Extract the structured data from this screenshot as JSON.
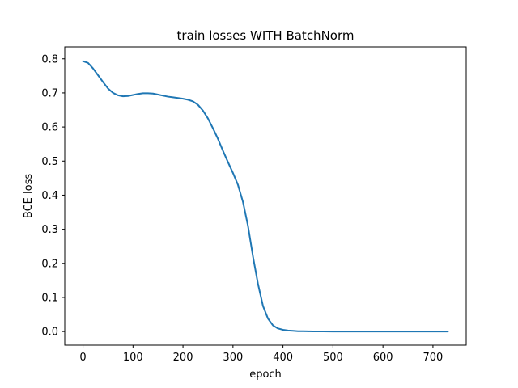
{
  "chart_data": {
    "type": "line",
    "title": "train losses WITH BatchNorm",
    "xlabel": "epoch",
    "ylabel": "BCE loss",
    "xlim": [
      -36.5,
      766.5
    ],
    "ylim": [
      -0.04,
      0.835
    ],
    "xticks": [
      0,
      100,
      200,
      300,
      400,
      500,
      600,
      700
    ],
    "yticks": [
      0.0,
      0.1,
      0.2,
      0.3,
      0.4,
      0.5,
      0.6,
      0.7,
      0.8
    ],
    "ytick_labels": [
      "0.0",
      "0.1",
      "0.2",
      "0.3",
      "0.4",
      "0.5",
      "0.6",
      "0.7",
      "0.8"
    ],
    "grid": false,
    "line_color": "#1f77b4",
    "series": [
      {
        "x": [
          0,
          10,
          20,
          30,
          40,
          50,
          60,
          70,
          80,
          90,
          100,
          110,
          120,
          130,
          140,
          150,
          160,
          170,
          180,
          190,
          200,
          210,
          220,
          230,
          240,
          250,
          260,
          270,
          280,
          290,
          300,
          310,
          320,
          330,
          340,
          350,
          360,
          370,
          380,
          390,
          400,
          410,
          420,
          430,
          440,
          450,
          460,
          480,
          500,
          550,
          600,
          650,
          700,
          730
        ],
        "y": [
          0.793,
          0.788,
          0.772,
          0.752,
          0.732,
          0.713,
          0.7,
          0.693,
          0.69,
          0.691,
          0.694,
          0.697,
          0.699,
          0.699,
          0.698,
          0.695,
          0.692,
          0.689,
          0.687,
          0.685,
          0.683,
          0.68,
          0.675,
          0.665,
          0.648,
          0.625,
          0.596,
          0.565,
          0.53,
          0.497,
          0.465,
          0.43,
          0.38,
          0.31,
          0.22,
          0.14,
          0.075,
          0.038,
          0.018,
          0.009,
          0.005,
          0.003,
          0.002,
          0.001,
          0.001,
          0.0005,
          0.0003,
          0.0002,
          0.0001,
          0.0001,
          0.0001,
          0.0001,
          0.0001,
          0.0001
        ]
      }
    ]
  }
}
